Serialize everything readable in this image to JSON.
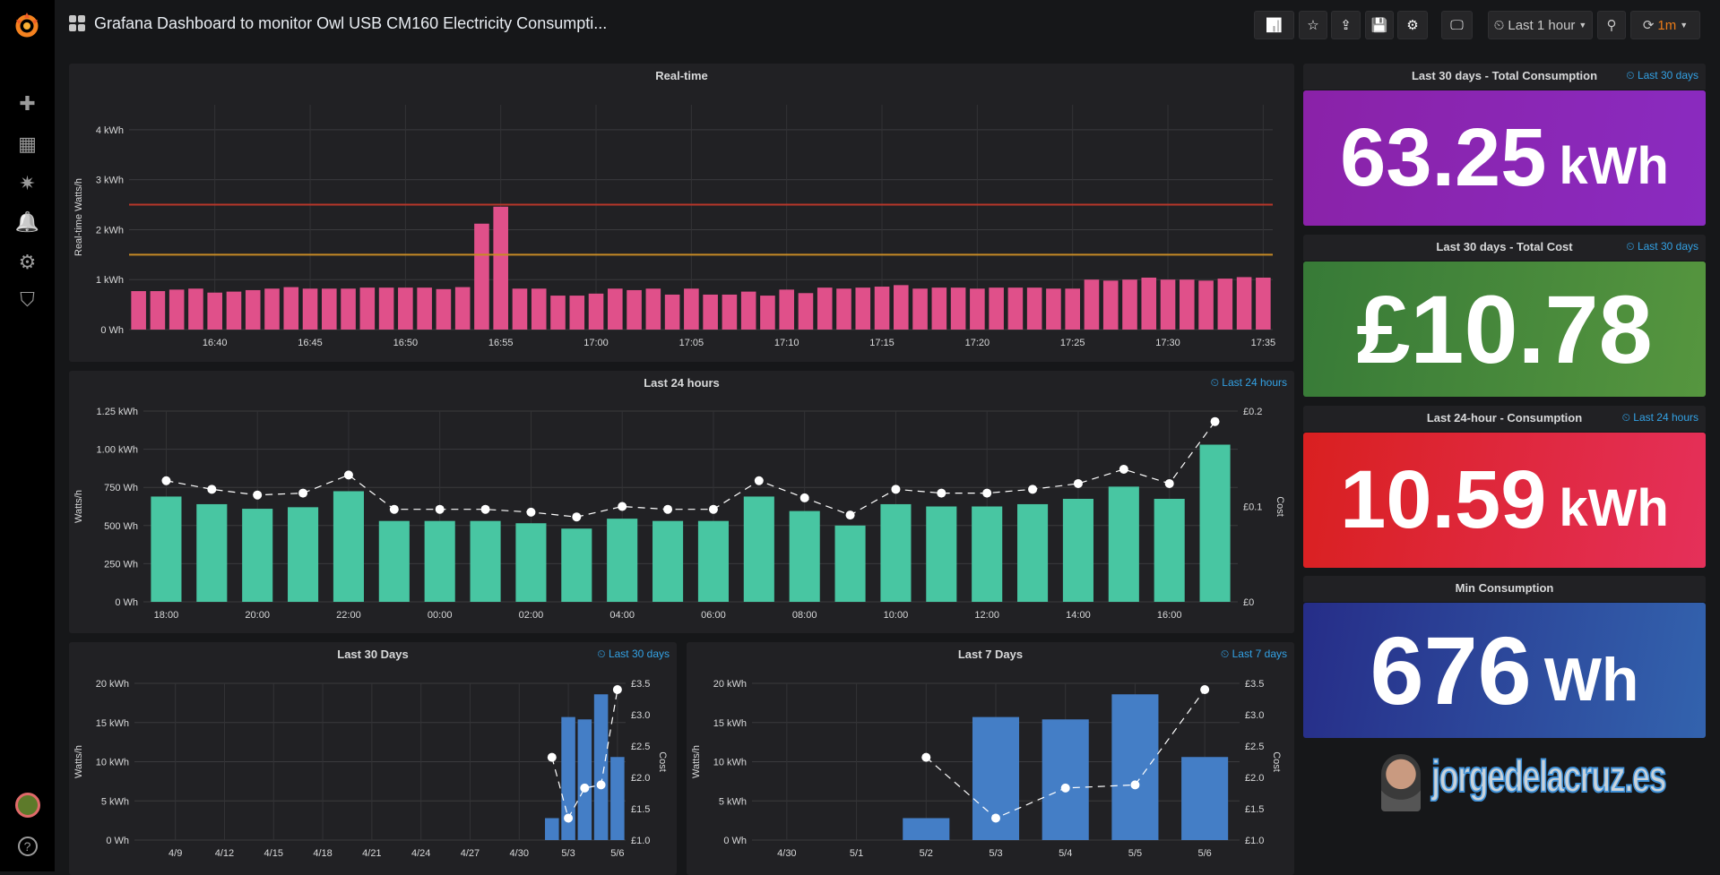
{
  "sidebar": {
    "items": [
      {
        "name": "create",
        "glyph": "✚"
      },
      {
        "name": "dashboards",
        "glyph": "▦"
      },
      {
        "name": "explore",
        "glyph": "✷"
      },
      {
        "name": "alerting",
        "glyph": "🔔"
      },
      {
        "name": "configuration",
        "glyph": "⚙"
      },
      {
        "name": "server-admin",
        "glyph": "⛉"
      }
    ],
    "help_glyph": "?"
  },
  "header": {
    "title": "Grafana Dashboard to monitor Owl USB CM160 Electricity Consumpti...",
    "time_picker": "Last 1 hour",
    "refresh": "1m",
    "buttons": [
      {
        "name": "add-panel",
        "glyph": "📊"
      },
      {
        "name": "star",
        "glyph": "☆"
      },
      {
        "name": "share",
        "glyph": "⇪"
      },
      {
        "name": "save",
        "glyph": "💾"
      },
      {
        "name": "settings",
        "glyph": "⚙"
      },
      {
        "name": "tv-mode",
        "glyph": "🖵"
      }
    ]
  },
  "colors": {
    "realtime": "#e0508a",
    "threshold_red": "#b8362a",
    "threshold_orange": "#c68a25",
    "hourly": "#48c6a2",
    "daily": "#447ec6",
    "accent": "#33a2e5",
    "refresh": "#eb7b18"
  },
  "stats": [
    {
      "title": "Last 30 days - Total Consumption",
      "time": "Last 30 days",
      "value": "63.25",
      "unit": "kWh",
      "colors": [
        "#8a22a8",
        "#8a2bc0"
      ]
    },
    {
      "title": "Last 30 days - Total Cost",
      "time": "Last 30 days",
      "value": "£10.78",
      "unit": "",
      "colors": [
        "#377a37",
        "#56963f"
      ]
    },
    {
      "title": "Last 24-hour - Consumption",
      "time": "Last 24 hours",
      "value": "10.59",
      "unit": "kWh",
      "colors": [
        "#d92020",
        "#e5305a"
      ]
    },
    {
      "title": "Min Consumption",
      "time": "",
      "value": "676",
      "unit": "Wh",
      "colors": [
        "#262d88",
        "#3363ae"
      ]
    }
  ],
  "brand": "jorgedelacruz.es",
  "chart_data": [
    {
      "id": "realtime",
      "type": "bar",
      "title": "Real-time",
      "time_label": "",
      "ylabel": "Real-time Watts/h",
      "ylim": [
        0,
        4.5
      ],
      "yticks": [
        {
          "v": 0,
          "label": "0 Wh"
        },
        {
          "v": 1,
          "label": "1 kWh"
        },
        {
          "v": 2,
          "label": "2 kWh"
        },
        {
          "v": 3,
          "label": "3 kWh"
        },
        {
          "v": 4,
          "label": "4 kWh"
        }
      ],
      "x_start": "16:36",
      "x_step_min": 1,
      "xticks": [
        {
          "i": 4,
          "label": "16:40"
        },
        {
          "i": 9,
          "label": "16:45"
        },
        {
          "i": 14,
          "label": "16:50"
        },
        {
          "i": 19,
          "label": "16:55"
        },
        {
          "i": 24,
          "label": "17:00"
        },
        {
          "i": 29,
          "label": "17:05"
        },
        {
          "i": 34,
          "label": "17:10"
        },
        {
          "i": 39,
          "label": "17:15"
        },
        {
          "i": 44,
          "label": "17:20"
        },
        {
          "i": 49,
          "label": "17:25"
        },
        {
          "i": 54,
          "label": "17:30"
        },
        {
          "i": 59,
          "label": "17:35"
        }
      ],
      "values": [
        0.77,
        0.77,
        0.8,
        0.82,
        0.74,
        0.76,
        0.79,
        0.82,
        0.85,
        0.82,
        0.82,
        0.82,
        0.84,
        0.84,
        0.84,
        0.84,
        0.81,
        0.85,
        2.12,
        2.46,
        0.82,
        0.82,
        0.68,
        0.68,
        0.72,
        0.82,
        0.79,
        0.82,
        0.7,
        0.82,
        0.7,
        0.7,
        0.76,
        0.68,
        0.8,
        0.73,
        0.84,
        0.82,
        0.84,
        0.86,
        0.89,
        0.82,
        0.84,
        0.84,
        0.82,
        0.84,
        0.84,
        0.84,
        0.82,
        0.82,
        1.0,
        0.98,
        1.0,
        1.04,
        1.0,
        1.0,
        0.98,
        1.02,
        1.05,
        1.04
      ],
      "thresholds": [
        {
          "v": 2.5,
          "color": "#b8362a"
        },
        {
          "v": 1.5,
          "color": "#c68a25"
        }
      ]
    },
    {
      "id": "h24",
      "type": "bar+line",
      "title": "Last 24 hours",
      "time_label": "Last 24 hours",
      "ylabel": "Watts/h",
      "y2label": "Cost",
      "ylim": [
        0,
        1.25
      ],
      "y2lim": [
        0,
        0.2
      ],
      "yticks": [
        {
          "v": 0,
          "label": "0 Wh"
        },
        {
          "v": 0.25,
          "label": "250 Wh"
        },
        {
          "v": 0.5,
          "label": "500 Wh"
        },
        {
          "v": 0.75,
          "label": "750 Wh"
        },
        {
          "v": 1.0,
          "label": "1.00 kWh"
        },
        {
          "v": 1.25,
          "label": "1.25 kWh"
        }
      ],
      "y2ticks": [
        {
          "v": 0,
          "label": "£0"
        },
        {
          "v": 0.1,
          "label": "£0.1"
        },
        {
          "v": 0.2,
          "label": "£0.2"
        }
      ],
      "categories": [
        "18:00",
        "19:00",
        "20:00",
        "21:00",
        "22:00",
        "23:00",
        "00:00",
        "01:00",
        "02:00",
        "03:00",
        "04:00",
        "05:00",
        "06:00",
        "07:00",
        "08:00",
        "09:00",
        "10:00",
        "11:00",
        "12:00",
        "13:00",
        "14:00",
        "15:00",
        "16:00",
        "17:00"
      ],
      "xtick_every": 2,
      "values": [
        0.69,
        0.64,
        0.61,
        0.62,
        0.725,
        0.53,
        0.53,
        0.53,
        0.515,
        0.48,
        0.545,
        0.53,
        0.53,
        0.69,
        0.595,
        0.5,
        0.64,
        0.625,
        0.625,
        0.64,
        0.675,
        0.755,
        0.675,
        1.03
      ],
      "cost": [
        0.127,
        0.118,
        0.112,
        0.114,
        0.133,
        0.097,
        0.097,
        0.097,
        0.094,
        0.089,
        0.1,
        0.097,
        0.097,
        0.127,
        0.109,
        0.091,
        0.118,
        0.114,
        0.114,
        0.118,
        0.124,
        0.139,
        0.124,
        0.189
      ]
    },
    {
      "id": "d30",
      "type": "bar+line",
      "title": "Last 30 Days",
      "time_label": "Last 30 days",
      "ylabel": "Watts/h",
      "y2label": "Cost",
      "ylim": [
        0,
        20
      ],
      "y2lim": [
        1.0,
        3.5
      ],
      "yticks": [
        {
          "v": 0,
          "label": "0 Wh"
        },
        {
          "v": 5,
          "label": "5 kWh"
        },
        {
          "v": 10,
          "label": "10 kWh"
        },
        {
          "v": 15,
          "label": "15 kWh"
        },
        {
          "v": 20,
          "label": "20 kWh"
        }
      ],
      "y2ticks": [
        {
          "v": 1.0,
          "label": "£1.0"
        },
        {
          "v": 1.5,
          "label": "£1.5"
        },
        {
          "v": 2.0,
          "label": "£2.0"
        },
        {
          "v": 2.5,
          "label": "£2.5"
        },
        {
          "v": 3.0,
          "label": "£3.0"
        },
        {
          "v": 3.5,
          "label": "£3.5"
        }
      ],
      "categories": [
        "4/7",
        "4/8",
        "4/9",
        "4/10",
        "4/11",
        "4/12",
        "4/13",
        "4/14",
        "4/15",
        "4/16",
        "4/17",
        "4/18",
        "4/19",
        "4/20",
        "4/21",
        "4/22",
        "4/23",
        "4/24",
        "4/25",
        "4/26",
        "4/27",
        "4/28",
        "4/29",
        "4/30",
        "5/1",
        "5/2",
        "5/3",
        "5/4",
        "5/5",
        "5/6"
      ],
      "xtick_labels": [
        "4/9",
        "4/12",
        "4/15",
        "4/18",
        "4/21",
        "4/24",
        "4/27",
        "4/30",
        "5/3",
        "5/6"
      ],
      "values": [
        null,
        null,
        null,
        null,
        null,
        null,
        null,
        null,
        null,
        null,
        null,
        null,
        null,
        null,
        null,
        null,
        null,
        null,
        null,
        null,
        null,
        null,
        null,
        null,
        null,
        2.8,
        15.7,
        15.4,
        18.6,
        10.6
      ],
      "cost": [
        null,
        null,
        null,
        null,
        null,
        null,
        null,
        null,
        null,
        null,
        null,
        null,
        null,
        null,
        null,
        null,
        null,
        null,
        null,
        null,
        null,
        null,
        null,
        null,
        null,
        2.32,
        1.35,
        1.83,
        1.88,
        3.4
      ]
    },
    {
      "id": "d7",
      "type": "bar+line",
      "title": "Last 7 Days",
      "time_label": "Last 7 days",
      "ylabel": "Watts/h",
      "y2label": "Cost",
      "ylim": [
        0,
        20
      ],
      "y2lim": [
        1.0,
        3.5
      ],
      "yticks": [
        {
          "v": 0,
          "label": "0 Wh"
        },
        {
          "v": 5,
          "label": "5 kWh"
        },
        {
          "v": 10,
          "label": "10 kWh"
        },
        {
          "v": 15,
          "label": "15 kWh"
        },
        {
          "v": 20,
          "label": "20 kWh"
        }
      ],
      "y2ticks": [
        {
          "v": 1.0,
          "label": "£1.0"
        },
        {
          "v": 1.5,
          "label": "£1.5"
        },
        {
          "v": 2.0,
          "label": "£2.0"
        },
        {
          "v": 2.5,
          "label": "£2.5"
        },
        {
          "v": 3.0,
          "label": "£3.0"
        },
        {
          "v": 3.5,
          "label": "£3.5"
        }
      ],
      "categories": [
        "4/30",
        "5/1",
        "5/2",
        "5/3",
        "5/4",
        "5/5",
        "5/6"
      ],
      "xtick_labels": [
        "4/30",
        "5/1",
        "5/2",
        "5/3",
        "5/4",
        "5/5",
        "5/6"
      ],
      "values": [
        null,
        null,
        2.8,
        15.7,
        15.4,
        18.6,
        10.6
      ],
      "cost": [
        null,
        null,
        2.32,
        1.35,
        1.83,
        1.88,
        3.4
      ]
    }
  ]
}
